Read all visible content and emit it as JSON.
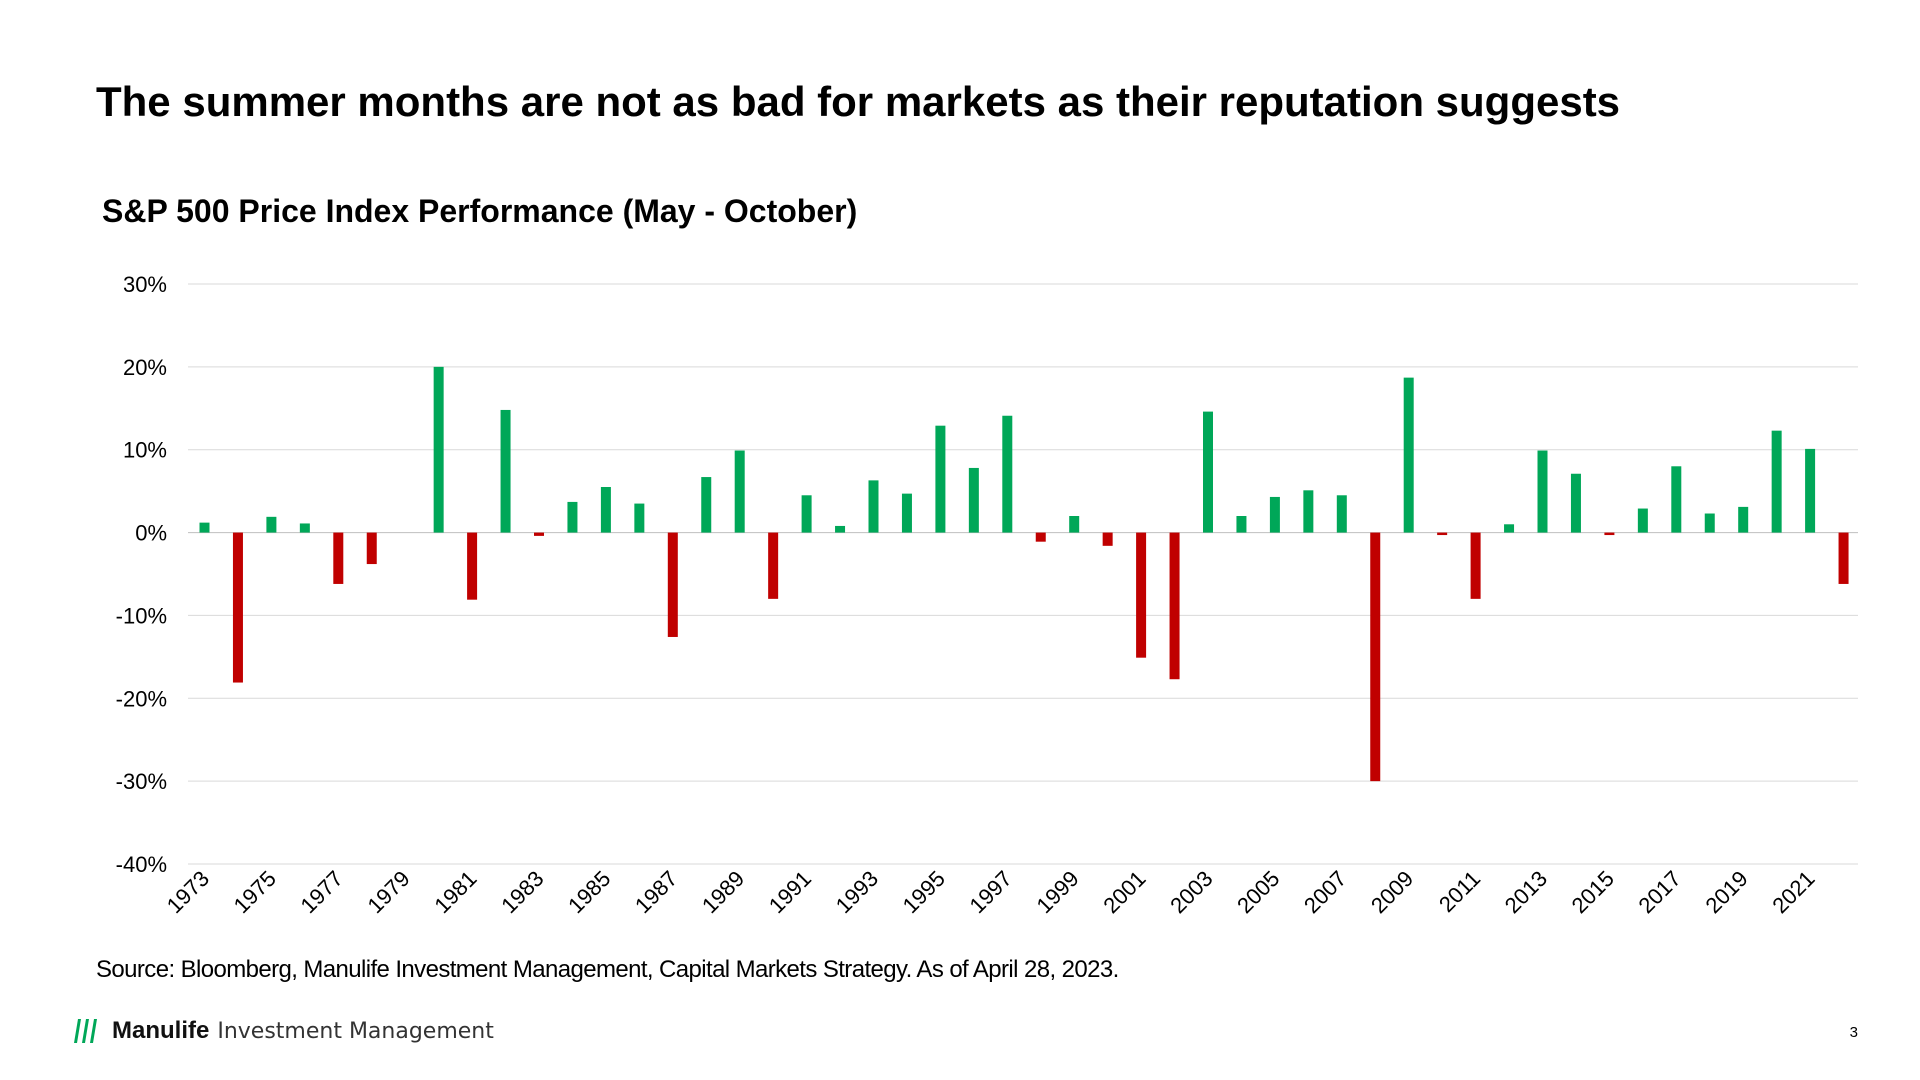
{
  "slide": {
    "title": "The summer months are not as bad for markets as their reputation suggests",
    "source": "Source: Bloomberg, Manulife Investment Management, Capital Markets Strategy. As of April 28, 2023.",
    "page_number": "3"
  },
  "brand": {
    "name": "Manulife",
    "sub": "Investment Management",
    "logo_icon": "manulife-m-icon",
    "logo_color": "#00A758"
  },
  "chart_data": {
    "type": "bar",
    "title": "S&P 500 Price Index Performance (May - October)",
    "xlabel": "",
    "ylabel": "",
    "ylim": [
      -40,
      30
    ],
    "yticks": [
      30,
      20,
      10,
      0,
      -10,
      -20,
      -30,
      -40
    ],
    "ytick_labels": [
      "30%",
      "20%",
      "10%",
      "0%",
      "-10%",
      "-20%",
      "-30%",
      "-40%"
    ],
    "grid": true,
    "legend": "none",
    "positive_color": "#00A758",
    "negative_color": "#C00000",
    "categories": [
      "1973",
      "1974",
      "1975",
      "1976",
      "1977",
      "1978",
      "1979",
      "1980",
      "1981",
      "1982",
      "1983",
      "1984",
      "1985",
      "1986",
      "1987",
      "1988",
      "1989",
      "1990",
      "1991",
      "1992",
      "1993",
      "1994",
      "1995",
      "1996",
      "1997",
      "1998",
      "1999",
      "2000",
      "2001",
      "2002",
      "2003",
      "2004",
      "2005",
      "2006",
      "2007",
      "2008",
      "2009",
      "2010",
      "2011",
      "2012",
      "2013",
      "2014",
      "2015",
      "2016",
      "2017",
      "2018",
      "2019",
      "2020",
      "2021",
      "2022"
    ],
    "xtick_labels": [
      "1973",
      "1975",
      "1977",
      "1979",
      "1981",
      "1983",
      "1985",
      "1987",
      "1989",
      "1991",
      "1993",
      "1995",
      "1997",
      "1999",
      "2001",
      "2003",
      "2005",
      "2007",
      "2009",
      "2011",
      "2013",
      "2015",
      "2017",
      "2019",
      "2021"
    ],
    "values": [
      1.2,
      -18.1,
      1.9,
      1.1,
      -6.2,
      -3.8,
      0.0,
      20.0,
      -8.1,
      14.8,
      -0.4,
      3.7,
      5.5,
      3.5,
      -12.6,
      6.7,
      9.9,
      -8.0,
      4.5,
      0.8,
      6.3,
      4.7,
      12.9,
      7.8,
      14.1,
      -1.1,
      2.0,
      -1.6,
      -15.1,
      -17.7,
      14.6,
      2.0,
      4.3,
      5.1,
      4.5,
      -30.0,
      18.7,
      -0.3,
      -8.0,
      1.0,
      9.9,
      7.1,
      -0.3,
      2.9,
      8.0,
      2.3,
      3.1,
      12.3,
      10.1,
      -6.2
    ]
  }
}
